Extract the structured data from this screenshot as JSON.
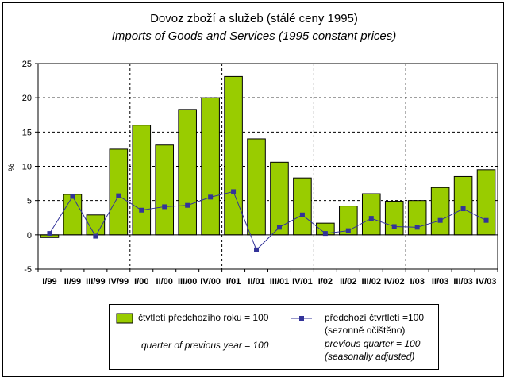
{
  "chart_data": {
    "type": "bar",
    "title": "Dovoz zboží a služeb (stálé ceny 1995)",
    "subtitle": "Imports of Goods and Services (1995 constant prices)",
    "ylabel": "%",
    "ylim": [
      -5,
      25
    ],
    "yticks": [
      -5,
      0,
      5,
      10,
      15,
      20,
      25
    ],
    "grid": "horizontal dashed + yearly vertical dashed",
    "categories": [
      "I/99",
      "II/99",
      "III/99",
      "IV/99",
      "I/00",
      "II/00",
      "III/00",
      "IV/00",
      "I/01",
      "II/01",
      "III/01",
      "IV/01",
      "I/02",
      "II/02",
      "III/02",
      "IV/02",
      "I/03",
      "II/03",
      "III/03",
      "IV/03"
    ],
    "series": [
      {
        "name": "čtvtletí předchozího roku = 100",
        "type": "bar",
        "color": "#99cc00",
        "values": [
          -0.4,
          5.9,
          2.9,
          12.5,
          16.0,
          13.1,
          18.3,
          20.0,
          23.1,
          14.0,
          10.6,
          8.3,
          1.7,
          4.2,
          6.0,
          4.9,
          5.0,
          6.9,
          8.5,
          9.5
        ]
      },
      {
        "name": "předchozí čtvrtletí =100",
        "type": "line",
        "color": "#333399",
        "values": [
          0.2,
          5.6,
          -0.2,
          5.7,
          3.6,
          4.1,
          4.3,
          5.5,
          6.3,
          -2.2,
          1.1,
          2.9,
          0.2,
          0.6,
          2.4,
          1.2,
          1.1,
          2.1,
          3.8,
          2.1
        ]
      }
    ],
    "legend": {
      "placement": "bottom",
      "bar_label_cz": "čtvtletí předchozího roku = 100",
      "bar_label_en": "quarter of previous year = 100",
      "line_label_cz_1": "předchozí čtvrtletí =100",
      "line_label_cz_2": "(sezonně očištěno)",
      "line_label_en_1": "previous quarter = 100",
      "line_label_en_2": "(seasonally adjusted)"
    }
  }
}
